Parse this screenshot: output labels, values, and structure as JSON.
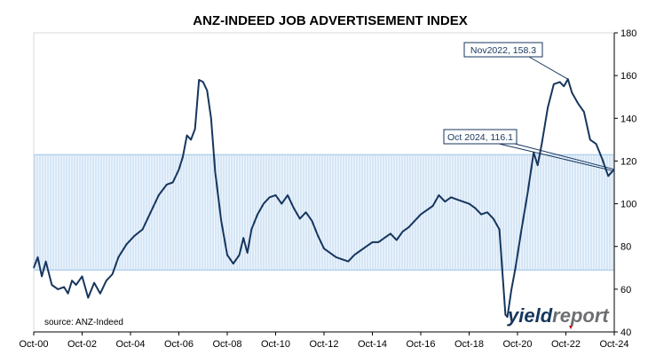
{
  "chart_data": {
    "type": "line",
    "title": "ANZ-INDEED JOB ADVERTISEMENT INDEX",
    "xlabel": "",
    "ylabel": "",
    "ylim": [
      40,
      180
    ],
    "y_ticks": [
      "40",
      "60",
      "80",
      "100",
      "120",
      "140",
      "160",
      "180"
    ],
    "y_axis_position": "right",
    "x_range": [
      "Oct-00",
      "Oct-24"
    ],
    "x_ticks": [
      "Oct-00",
      "Oct-02",
      "Oct-04",
      "Oct-06",
      "Oct-08",
      "Oct-10",
      "Oct-12",
      "Oct-14",
      "Oct-16",
      "Oct-18",
      "Oct-20",
      "Oct-22",
      "Oct-24"
    ],
    "shaded_band": {
      "from": 69,
      "to": 123,
      "color": "#bdd7ee"
    },
    "line_color": "#17365d",
    "series": [
      {
        "name": "",
        "points": [
          [
            "Oct-00",
            70
          ],
          [
            "Dec-00",
            75
          ],
          [
            "Feb-01",
            66
          ],
          [
            "Apr-01",
            73
          ],
          [
            "Jul-01",
            62
          ],
          [
            "Oct-01",
            60
          ],
          [
            "Jan-02",
            61
          ],
          [
            "Mar-02",
            58
          ],
          [
            "May-02",
            64
          ],
          [
            "Jul-02",
            62
          ],
          [
            "Oct-02",
            66
          ],
          [
            "Jan-03",
            56
          ],
          [
            "Apr-03",
            63
          ],
          [
            "Jul-03",
            58
          ],
          [
            "Oct-03",
            64
          ],
          [
            "Jan-04",
            67
          ],
          [
            "Apr-04",
            75
          ],
          [
            "Aug-04",
            81
          ],
          [
            "Dec-04",
            85
          ],
          [
            "Apr-05",
            88
          ],
          [
            "Aug-05",
            96
          ],
          [
            "Dec-05",
            104
          ],
          [
            "Apr-06",
            109
          ],
          [
            "Jul-06",
            110
          ],
          [
            "Oct-06",
            116
          ],
          [
            "Dec-06",
            122
          ],
          [
            "Feb-07",
            132
          ],
          [
            "Apr-07",
            130
          ],
          [
            "Jun-07",
            135
          ],
          [
            "Aug-07",
            158
          ],
          [
            "Oct-07",
            157
          ],
          [
            "Dec-07",
            153
          ],
          [
            "Feb-08",
            140
          ],
          [
            "Apr-08",
            115
          ],
          [
            "Jul-08",
            92
          ],
          [
            "Oct-08",
            76
          ],
          [
            "Jan-09",
            72
          ],
          [
            "Apr-09",
            76
          ],
          [
            "Jun-09",
            84
          ],
          [
            "Aug-09",
            77
          ],
          [
            "Oct-09",
            88
          ],
          [
            "Jan-10",
            95
          ],
          [
            "Apr-10",
            100
          ],
          [
            "Jul-10",
            103
          ],
          [
            "Oct-10",
            104
          ],
          [
            "Jan-11",
            100
          ],
          [
            "Apr-11",
            104
          ],
          [
            "Jul-11",
            98
          ],
          [
            "Oct-11",
            93
          ],
          [
            "Jan-12",
            96
          ],
          [
            "Apr-12",
            92
          ],
          [
            "Jul-12",
            85
          ],
          [
            "Oct-12",
            79
          ],
          [
            "Jan-13",
            77
          ],
          [
            "Apr-13",
            75
          ],
          [
            "Jul-13",
            74
          ],
          [
            "Oct-13",
            73
          ],
          [
            "Jan-14",
            76
          ],
          [
            "Apr-14",
            78
          ],
          [
            "Jul-14",
            80
          ],
          [
            "Oct-14",
            82
          ],
          [
            "Jan-15",
            82
          ],
          [
            "Apr-15",
            84
          ],
          [
            "Jul-15",
            86
          ],
          [
            "Oct-15",
            83
          ],
          [
            "Jan-16",
            87
          ],
          [
            "Apr-16",
            89
          ],
          [
            "Jul-16",
            92
          ],
          [
            "Oct-16",
            95
          ],
          [
            "Jan-17",
            97
          ],
          [
            "Apr-17",
            99
          ],
          [
            "Jul-17",
            104
          ],
          [
            "Oct-17",
            101
          ],
          [
            "Jan-18",
            103
          ],
          [
            "Apr-18",
            102
          ],
          [
            "Jul-18",
            101
          ],
          [
            "Oct-18",
            100
          ],
          [
            "Jan-19",
            98
          ],
          [
            "Apr-19",
            95
          ],
          [
            "Jul-19",
            96
          ],
          [
            "Oct-19",
            93
          ],
          [
            "Jan-20",
            88
          ],
          [
            "Apr-20",
            48
          ],
          [
            "May-20",
            47
          ],
          [
            "Jul-20",
            60
          ],
          [
            "Sep-20",
            70
          ],
          [
            "Dec-20",
            88
          ],
          [
            "Mar-21",
            105
          ],
          [
            "Jun-21",
            124
          ],
          [
            "Aug-21",
            118
          ],
          [
            "Oct-21",
            128
          ],
          [
            "Jan-22",
            145
          ],
          [
            "Apr-22",
            156
          ],
          [
            "Jul-22",
            157
          ],
          [
            "Sep-22",
            155
          ],
          [
            "Nov-22",
            158.3
          ],
          [
            "Jan-23",
            152
          ],
          [
            "Apr-23",
            147
          ],
          [
            "Jul-23",
            143
          ],
          [
            "Oct-23",
            130
          ],
          [
            "Jan-24",
            128
          ],
          [
            "Apr-24",
            121
          ],
          [
            "Jul-24",
            113
          ],
          [
            "Oct-24",
            116.1
          ]
        ]
      }
    ],
    "annotations": [
      {
        "text": "Nov2022, 158.3",
        "x": "Nov-22",
        "y": 158.3
      },
      {
        "text": "Oct 2024, 116.1",
        "x": "Oct-24",
        "y": 116.1
      }
    ]
  },
  "footer": {
    "source": "source: ANZ-Indeed",
    "logo_part1": "yield",
    "logo_part2": "report"
  }
}
